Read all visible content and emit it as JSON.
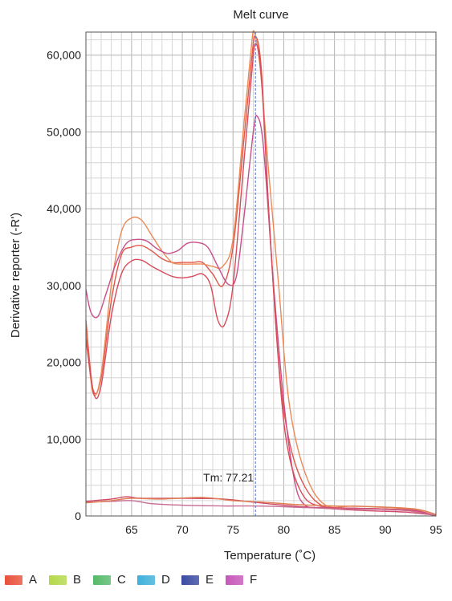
{
  "chart_data": {
    "type": "line",
    "title": "Melt curve",
    "xlabel": "Temperature (˚C)",
    "ylabel": "Derivative reporter (-R')",
    "xlim": [
      60.5,
      95
    ],
    "ylim": [
      0,
      63000
    ],
    "x_ticks": [
      65,
      70,
      75,
      80,
      85,
      90,
      95
    ],
    "x_tick_labels": [
      "65",
      "70",
      "75",
      "80",
      "85",
      "90",
      "95"
    ],
    "y_ticks": [
      0,
      10000,
      20000,
      30000,
      40000,
      50000,
      60000
    ],
    "y_tick_labels": [
      "0",
      "10,000",
      "20,000",
      "30,000",
      "40,000",
      "50,000",
      "60,000"
    ],
    "grid": true,
    "legend_position": "bottom",
    "tm_value": 77.21,
    "tm_label": "Tm: 77.21",
    "series": [
      {
        "name": "A",
        "color": "#e0574a",
        "points": [
          [
            60.5,
            25500
          ],
          [
            61.2,
            16500
          ],
          [
            62,
            18000
          ],
          [
            63,
            28000
          ],
          [
            64,
            34000
          ],
          [
            65,
            35000
          ],
          [
            66,
            35200
          ],
          [
            67,
            34500
          ],
          [
            68,
            33500
          ],
          [
            69,
            33000
          ],
          [
            70,
            33000
          ],
          [
            71,
            33000
          ],
          [
            72,
            33000
          ],
          [
            73,
            31500
          ],
          [
            74,
            30000
          ],
          [
            75,
            35000
          ],
          [
            76,
            48000
          ],
          [
            76.8,
            59000
          ],
          [
            77.2,
            62500
          ],
          [
            77.8,
            58000
          ],
          [
            78.5,
            40000
          ],
          [
            79.5,
            20000
          ],
          [
            80.5,
            10000
          ],
          [
            82,
            4000
          ],
          [
            84,
            1200
          ],
          [
            87,
            1000
          ],
          [
            90,
            900
          ],
          [
            93,
            700
          ],
          [
            95,
            0
          ]
        ]
      },
      {
        "name": "A",
        "color": "#ec8a58",
        "points": [
          [
            60.5,
            24000
          ],
          [
            61.2,
            16000
          ],
          [
            62,
            18500
          ],
          [
            63,
            30000
          ],
          [
            64,
            37000
          ],
          [
            65,
            38800
          ],
          [
            66,
            38500
          ],
          [
            67,
            36500
          ],
          [
            68,
            34500
          ],
          [
            69,
            33000
          ],
          [
            70,
            32800
          ],
          [
            71,
            32800
          ],
          [
            72,
            32800
          ],
          [
            73,
            32500
          ],
          [
            74,
            32500
          ],
          [
            75,
            36000
          ],
          [
            76,
            50000
          ],
          [
            76.8,
            61000
          ],
          [
            77.1,
            63000
          ],
          [
            77.7,
            58000
          ],
          [
            78.5,
            45000
          ],
          [
            79.5,
            30000
          ],
          [
            80.5,
            15000
          ],
          [
            82,
            6000
          ],
          [
            84,
            1500
          ],
          [
            87,
            1300
          ],
          [
            90,
            1100
          ],
          [
            93,
            800
          ],
          [
            95,
            0
          ]
        ]
      },
      {
        "name": "F",
        "color": "#c8508a",
        "points": [
          [
            60.5,
            29500
          ],
          [
            61,
            26500
          ],
          [
            61.7,
            26000
          ],
          [
            62.5,
            29000
          ],
          [
            63.5,
            33000
          ],
          [
            64.5,
            35500
          ],
          [
            65.5,
            36000
          ],
          [
            66.5,
            35800
          ],
          [
            67.5,
            34800
          ],
          [
            68.5,
            34200
          ],
          [
            69.5,
            34500
          ],
          [
            70.5,
            35500
          ],
          [
            71.5,
            35600
          ],
          [
            72.5,
            35000
          ],
          [
            73.5,
            32500
          ],
          [
            74.5,
            30200
          ],
          [
            75.3,
            31000
          ],
          [
            76,
            38000
          ],
          [
            77,
            50000
          ],
          [
            77.4,
            52000
          ],
          [
            78,
            48000
          ],
          [
            79,
            30000
          ],
          [
            80,
            15000
          ],
          [
            81,
            5000
          ],
          [
            82,
            1500
          ],
          [
            84,
            1100
          ],
          [
            87,
            1000
          ],
          [
            90,
            900
          ],
          [
            93,
            700
          ],
          [
            95,
            0
          ]
        ]
      },
      {
        "name": "A",
        "color": "#d84b5a",
        "points": [
          [
            60.5,
            23000
          ],
          [
            61.3,
            15800
          ],
          [
            62,
            17000
          ],
          [
            63,
            26000
          ],
          [
            64,
            31500
          ],
          [
            65,
            33200
          ],
          [
            66,
            33300
          ],
          [
            67,
            32500
          ],
          [
            68,
            31800
          ],
          [
            69,
            31200
          ],
          [
            70,
            31000
          ],
          [
            71,
            31200
          ],
          [
            72,
            31500
          ],
          [
            72.8,
            30000
          ],
          [
            73.5,
            25500
          ],
          [
            74.2,
            25000
          ],
          [
            75,
            30000
          ],
          [
            76,
            45000
          ],
          [
            76.8,
            57000
          ],
          [
            77.2,
            61500
          ],
          [
            77.8,
            57000
          ],
          [
            78.6,
            38000
          ],
          [
            79.6,
            18000
          ],
          [
            80.5,
            8000
          ],
          [
            82,
            2500
          ],
          [
            84,
            1200
          ],
          [
            87,
            1000
          ],
          [
            90,
            900
          ],
          [
            93,
            600
          ],
          [
            95,
            0
          ]
        ]
      },
      {
        "name": "E",
        "color": "#cf4b68",
        "points": [
          [
            60.5,
            1900
          ],
          [
            63,
            2200
          ],
          [
            64.5,
            2500
          ],
          [
            66,
            2300
          ],
          [
            70,
            2300
          ],
          [
            74,
            2200
          ],
          [
            77,
            1800
          ],
          [
            80,
            1400
          ],
          [
            84,
            1000
          ],
          [
            88,
            700
          ],
          [
            92,
            500
          ],
          [
            95,
            100
          ]
        ]
      },
      {
        "name": "C",
        "color": "#c86a92",
        "points": [
          [
            60.5,
            1800
          ],
          [
            63,
            1900
          ],
          [
            65,
            2000
          ],
          [
            67,
            1600
          ],
          [
            70,
            1400
          ],
          [
            74,
            1300
          ],
          [
            77,
            1300
          ],
          [
            80,
            1200
          ],
          [
            84,
            1000
          ],
          [
            88,
            900
          ],
          [
            92,
            700
          ],
          [
            95,
            100
          ]
        ]
      },
      {
        "name": "D",
        "color": "#e07d52",
        "points": [
          [
            60.5,
            1700
          ],
          [
            63,
            2000
          ],
          [
            65,
            2300
          ],
          [
            68,
            2200
          ],
          [
            72,
            2400
          ],
          [
            75,
            2000
          ],
          [
            78,
            1800
          ],
          [
            81,
            1500
          ],
          [
            85,
            1300
          ],
          [
            89,
            1200
          ],
          [
            93,
            900
          ],
          [
            95,
            200
          ]
        ]
      }
    ],
    "legend": [
      {
        "label": "A",
        "color": "#e8513a"
      },
      {
        "label": "B",
        "color": "#b4d84a"
      },
      {
        "label": "C",
        "color": "#56b96a"
      },
      {
        "label": "D",
        "color": "#3fb0da"
      },
      {
        "label": "E",
        "color": "#3a4aa0"
      },
      {
        "label": "F",
        "color": "#c657b9"
      }
    ]
  }
}
